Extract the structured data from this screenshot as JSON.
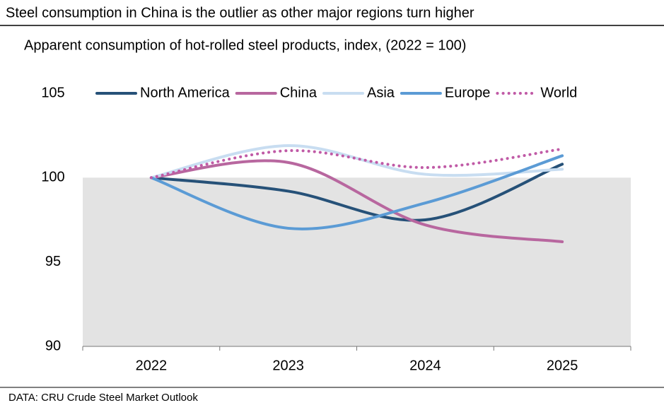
{
  "chart_data": {
    "type": "line",
    "title": "Steel consumption in China is the outlier as other major regions turn higher",
    "subtitle": "Apparent consumption of hot-rolled steel products, index, (2022 = 100)",
    "source": "DATA: CRU Crude Steel Market Outlook",
    "categories": [
      "2022",
      "2023",
      "2024",
      "2025"
    ],
    "series": [
      {
        "name": "North America",
        "color": "#265178",
        "values": [
          100,
          99.2,
          97.5,
          100.8
        ]
      },
      {
        "name": "China",
        "color": "#b8679f",
        "values": [
          100,
          100.9,
          97.2,
          96.2
        ]
      },
      {
        "name": "Asia",
        "color": "#c8ddf1",
        "values": [
          100,
          101.9,
          100.2,
          100.5
        ]
      },
      {
        "name": "Europe",
        "color": "#5b9bd5",
        "values": [
          100,
          97,
          98.5,
          101.3
        ]
      },
      {
        "name": "World",
        "color": "#c05aa6",
        "style": "dotted",
        "values": [
          100,
          101.6,
          100.6,
          101.7
        ]
      }
    ],
    "ylim": [
      90,
      105
    ],
    "yticks": [
      90,
      95,
      100,
      105
    ],
    "baseline": 100,
    "shade_color": "#e3e3e3",
    "legend": "top"
  }
}
